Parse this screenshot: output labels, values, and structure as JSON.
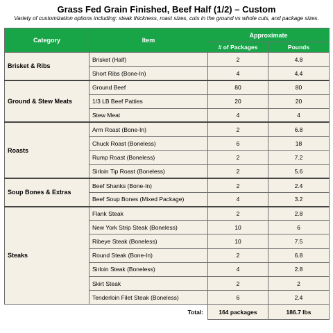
{
  "title": "Grass Fed Grain Finished, Beef Half (1/2) – Custom",
  "subtitle": "Variety of customization options including: steak thickness, roast sizes, cuts in the ground vs whole cuts, and package sizes.",
  "header": {
    "category": "Category",
    "item": "Item",
    "approximate": "Approximate",
    "packages": "# of Packages",
    "pounds": "Pounds"
  },
  "groups": [
    {
      "category": "Brisket & Ribs",
      "rows": [
        {
          "item": "Brisket (Half)",
          "packages": "2",
          "pounds": "4.8"
        },
        {
          "item": "Short Ribs (Bone-In)",
          "packages": "4",
          "pounds": "4.4"
        }
      ]
    },
    {
      "category": "Ground & Stew Meats",
      "rows": [
        {
          "item": "Ground Beef",
          "packages": "80",
          "pounds": "80"
        },
        {
          "item": "1/3 LB Beef Patties",
          "packages": "20",
          "pounds": "20"
        },
        {
          "item": "Stew Meat",
          "packages": "4",
          "pounds": "4"
        }
      ]
    },
    {
      "category": "Roasts",
      "rows": [
        {
          "item": " Arm Roast (Bone-In)",
          "packages": "2",
          "pounds": "6.8"
        },
        {
          "item": "Chuck Roast (Boneless)",
          "packages": "6",
          "pounds": "18"
        },
        {
          "item": "Rump Roast (Boneless)",
          "packages": "2",
          "pounds": "7.2"
        },
        {
          "item": "Sirloin Tip Roast (Boneless)",
          "packages": "2",
          "pounds": "5.6"
        }
      ]
    },
    {
      "category": "Soup Bones & Extras",
      "rows": [
        {
          "item": "Beef Shanks (Bone-In)",
          "packages": "2",
          "pounds": "2.4"
        },
        {
          "item": "Beef Soup Bones (Mixed Package)",
          "packages": "4",
          "pounds": "3.2"
        }
      ]
    },
    {
      "category": "Steaks",
      "rows": [
        {
          "item": "Flank Steak",
          "packages": "2",
          "pounds": "2.8"
        },
        {
          "item": "New York Strip Steak (Boneless)",
          "packages": "10",
          "pounds": "6"
        },
        {
          "item": "Ribeye Steak (Boneless)",
          "packages": "10",
          "pounds": "7.5"
        },
        {
          "item": "Round Steak (Bone-In)",
          "packages": "2",
          "pounds": "6.8"
        },
        {
          "item": "Sirloin Steak (Boneless)",
          "packages": "4",
          "pounds": "2.8"
        },
        {
          "item": "Skirt Steak",
          "packages": "2",
          "pounds": "2"
        },
        {
          "item": "Tenderloin Filet Steak (Boneless)",
          "packages": "6",
          "pounds": "2.4"
        }
      ]
    }
  ],
  "totals": {
    "label": "Total:",
    "packages": "164 packages",
    "pounds": "186.7 lbs"
  },
  "colors": {
    "header_bg": "#17a548",
    "cell_bg": "#f5f0e6"
  }
}
